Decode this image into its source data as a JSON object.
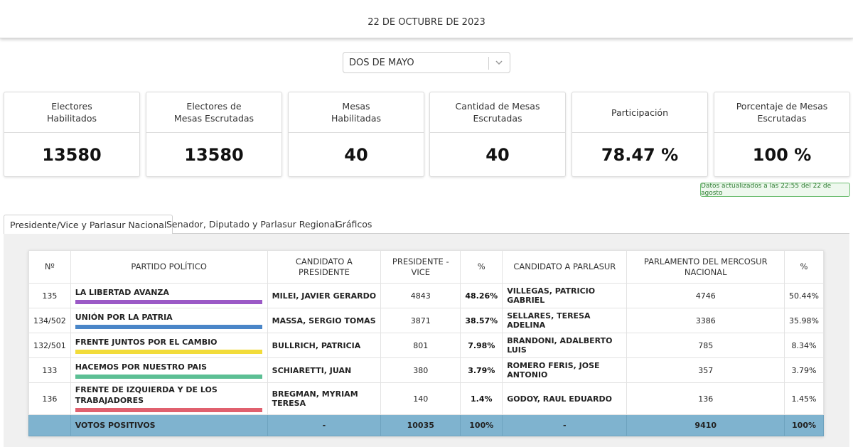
{
  "header": {
    "date": "22 DE OCTUBRE DE 2023"
  },
  "filter": {
    "selected": "DOS DE MAYO"
  },
  "cards": [
    {
      "label_l1": "Electores",
      "label_l2": "Habilitados",
      "value": "13580"
    },
    {
      "label_l1": "Electores de",
      "label_l2": "Mesas Escrutadas",
      "value": "13580"
    },
    {
      "label_l1": "Mesas",
      "label_l2": "Habilitadas",
      "value": "40"
    },
    {
      "label_l1": "Cantidad de Mesas Escrutadas",
      "label_l2": "",
      "value": "40"
    },
    {
      "label_l1": "Participación",
      "label_l2": "",
      "value": "78.47 %"
    },
    {
      "label_l1": "Porcentaje de Mesas Escrutadas",
      "label_l2": "",
      "value": "100 %"
    }
  ],
  "updated": "Datos actualizados a las 22:55 del 22 de agosto",
  "tabs": [
    {
      "label": "Presidente/Vice y Parlasur Nacional",
      "active": true
    },
    {
      "label": "Senador, Diputado y Parlasur Regional",
      "active": false
    },
    {
      "label": "Gráficos",
      "active": false
    }
  ],
  "table": {
    "headers": [
      "Nº",
      "PARTIDO POLÍTICO",
      "CANDIDATO A PRESIDENTE",
      "PRESIDENTE - VICE",
      "%",
      "CANDIDATO A PARLASUR",
      "PARLAMENTO DEL MERCOSUR NACIONAL",
      "%"
    ],
    "rows": [
      {
        "nro": "135",
        "party": "LA LIBERTAD AVANZA",
        "color": "#9b59c6",
        "presidente": "MILEI, JAVIER GERARDO",
        "votos_pres": "4843",
        "pct_pres": "48.26%",
        "parlasur": "VILLEGAS, PATRICIO GABRIEL",
        "votos_parl": "4746",
        "pct_parl": "50.44%"
      },
      {
        "nro": "134/502",
        "party": "UNIÓN POR LA PATRIA",
        "color": "#4a86c8",
        "presidente": "MASSA, SERGIO TOMAS",
        "votos_pres": "3871",
        "pct_pres": "38.57%",
        "parlasur": "SELLARES, TERESA ADELINA",
        "votos_parl": "3386",
        "pct_parl": "35.98%"
      },
      {
        "nro": "132/501",
        "party": "FRENTE JUNTOS POR EL CAMBIO",
        "color": "#f2dc3a",
        "presidente": "BULLRICH, PATRICIA",
        "votos_pres": "801",
        "pct_pres": "7.98%",
        "parlasur": "BRANDONI, ADALBERTO LUIS",
        "votos_parl": "785",
        "pct_parl": "8.34%"
      },
      {
        "nro": "133",
        "party": "HACEMOS POR NUESTRO PAIS",
        "color": "#5cbf94",
        "presidente": "SCHIARETTI, JUAN",
        "votos_pres": "380",
        "pct_pres": "3.79%",
        "parlasur": "ROMERO FERIS, JOSE ANTONIO",
        "votos_parl": "357",
        "pct_parl": "3.79%"
      },
      {
        "nro": "136",
        "party": "FRENTE DE IZQUIERDA Y DE LOS TRABAJADORES",
        "color": "#e0606e",
        "presidente": "BREGMAN, MYRIAM TERESA",
        "votos_pres": "140",
        "pct_pres": "1.4%",
        "parlasur": "GODOY, RAUL EDUARDO",
        "votos_parl": "136",
        "pct_parl": "1.45%"
      }
    ],
    "total": {
      "label": "VOTOS POSITIVOS",
      "presidente": "-",
      "votos_pres": "10035",
      "pct_pres": "100%",
      "parlasur": "-",
      "votos_parl": "9410",
      "pct_parl": "100%"
    }
  }
}
